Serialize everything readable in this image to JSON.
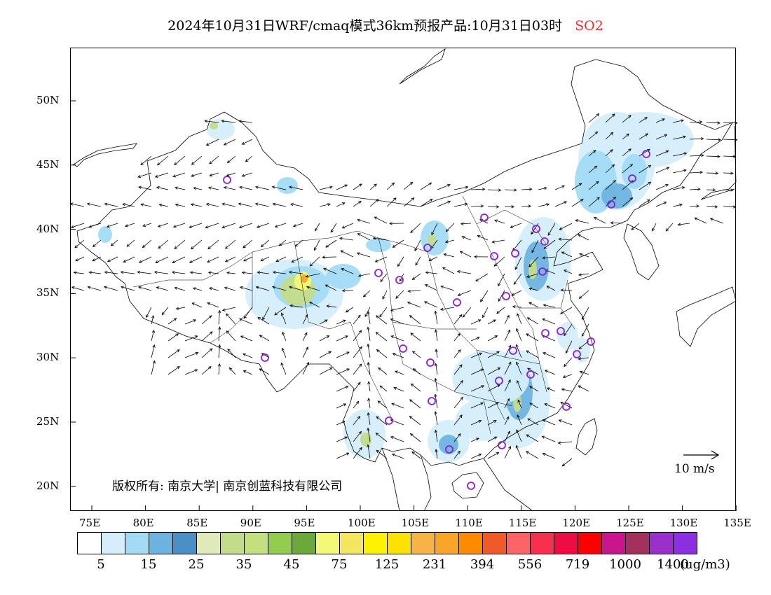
{
  "title": {
    "text": "2024年10月31日WRF/cmaq模式36km预报产品:10月31日03时",
    "pollutant": "SO2",
    "pollutant_color": "#e8312f"
  },
  "axes": {
    "lat_labels": [
      "50N",
      "45N",
      "40N",
      "35N",
      "30N",
      "25N",
      "20N"
    ],
    "lon_labels": [
      "75E",
      "80E",
      "85E",
      "90E",
      "95E",
      "100E",
      "105E",
      "110E",
      "115E",
      "120E",
      "125E",
      "130E",
      "135E"
    ]
  },
  "copyright": "版权所有: 南京大学| 南京创蓝科技有限公司",
  "wind_scale_label": "10 m/s",
  "colorbar": {
    "colors": [
      "#ffffff",
      "#d4eefb",
      "#a3dbf5",
      "#6eb3e0",
      "#4a8fc5",
      "#dfeab8",
      "#c3dc8a",
      "#c4e07e",
      "#94cc50",
      "#6aa93a",
      "#f3f876",
      "#f4e661",
      "#fff200",
      "#fde200",
      "#f8b347",
      "#f8a52a",
      "#ff8a00",
      "#f05a28",
      "#fe6466",
      "#f6304d",
      "#ed0d44",
      "#fe0000",
      "#c9168c",
      "#a3305d",
      "#9b2fcb",
      "#8b2fe1"
    ],
    "labels": [
      "5",
      "15",
      "25",
      "35",
      "45",
      "75",
      "125",
      "231",
      "394",
      "556",
      "719",
      "1000",
      "1400"
    ],
    "unit": "(ug/m3)"
  },
  "map_colors": {
    "light_blue": "#d4eefb",
    "mid_blue": "#a3dbf5",
    "blue": "#6eb3e0",
    "dark_blue": "#4a8fc5",
    "green": "#c3dc8a",
    "yellow": "#f3f876",
    "orange": "#f8a52a",
    "station": "#8a1fd6"
  }
}
